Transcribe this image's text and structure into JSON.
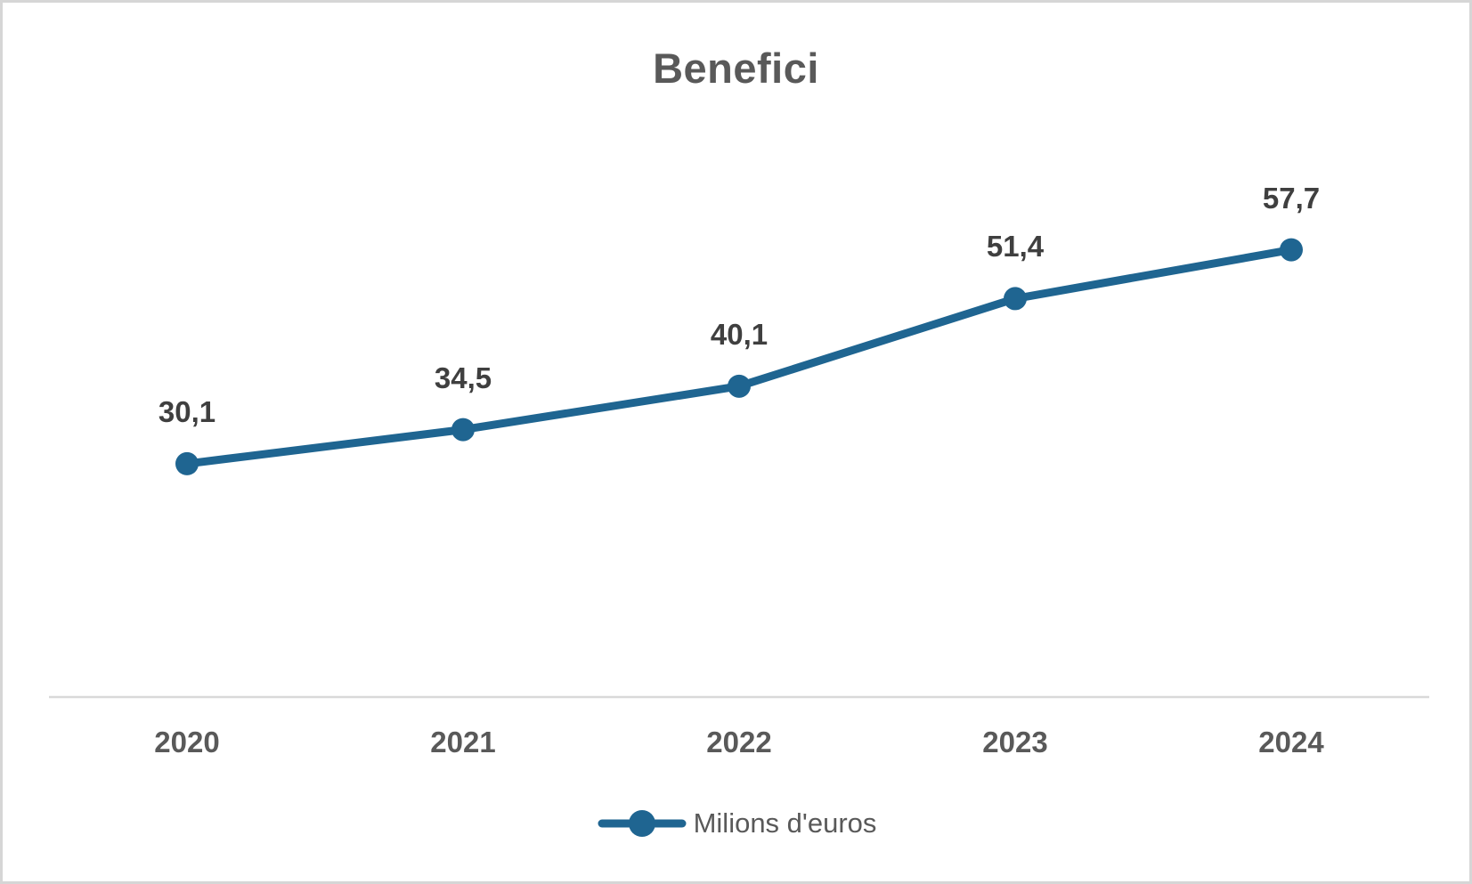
{
  "window": {
    "background": "#ffffff",
    "border_color": "#d6d6d6"
  },
  "chart_data": {
    "type": "line",
    "title": "Benefici",
    "categories": [
      "2020",
      "2021",
      "2022",
      "2023",
      "2024"
    ],
    "series": [
      {
        "name": "Milions d'euros",
        "values": [
          30.1,
          34.5,
          40.1,
          51.4,
          57.7
        ],
        "value_labels": [
          "30,1",
          "34,5",
          "40,1",
          "51,4",
          "57,7"
        ]
      }
    ],
    "xlabel": "",
    "ylabel": "",
    "ylim": [
      0,
      73.5
    ],
    "grid": false,
    "legend_position": "bottom",
    "colors": {
      "line": "#1f6591",
      "marker": "#1f6591",
      "title": "#595959",
      "data_label": "#3f3f3f",
      "tick_label": "#595959",
      "axis_line": "#d9d9d9"
    }
  }
}
